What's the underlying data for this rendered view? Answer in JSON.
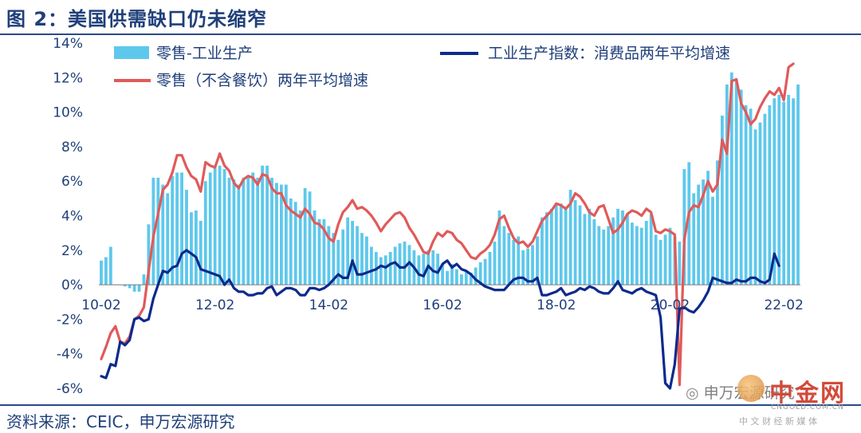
{
  "header": {
    "title": "图 2：美国供需缺口仍未缩窄"
  },
  "footer": {
    "source": "资料来源：CEIC，申万宏源研究"
  },
  "watermark": {
    "wechat": "申万宏源研究",
    "brand": "中金网",
    "domain": "CNGOLD.COM.CN",
    "tagline": "中 文 财 经 新 媒 体"
  },
  "colors": {
    "bars": "#5ec8ec",
    "dark_line": "#0d2a8c",
    "red_line": "#e05a5a",
    "text": "#1f3f7a"
  },
  "chart_data": {
    "type": "bar",
    "title": "",
    "xlabel": "",
    "ylabel": "",
    "ylim": [
      -6,
      14
    ],
    "yticks": [
      "-6%",
      "-4%",
      "-2%",
      "0%",
      "2%",
      "4%",
      "6%",
      "8%",
      "10%",
      "12%",
      "14%"
    ],
    "x_tick_labels": [
      "10-02",
      "12-02",
      "14-02",
      "16-02",
      "18-02",
      "20-02",
      "22-02"
    ],
    "x_tick_index": [
      0,
      24,
      48,
      72,
      96,
      120,
      144
    ],
    "legend": {
      "position": "top",
      "entries": [
        "零售-工业生产",
        "工业生产指数：消费品两年平均增速",
        "零售（不含餐饮）两年平均增速"
      ]
    },
    "series": [
      {
        "name": "零售-工业生产",
        "type": "bar",
        "values": [
          1.4,
          1.6,
          2.2,
          0.0,
          0.0,
          -0.1,
          -0.2,
          -0.4,
          -0.4,
          0.6,
          3.5,
          6.2,
          6.2,
          5.8,
          5.3,
          6.3,
          6.5,
          6.5,
          5.5,
          4.2,
          4.3,
          3.7,
          6.0,
          6.5,
          6.8,
          6.9,
          6.7,
          6.2,
          6.1,
          5.8,
          6.2,
          6.3,
          6.5,
          6.2,
          6.9,
          6.9,
          6.2,
          5.9,
          5.8,
          5.8,
          5.0,
          4.8,
          4.3,
          5.6,
          5.4,
          4.3,
          3.8,
          3.8,
          3.4,
          3.0,
          2.6,
          3.2,
          3.9,
          3.7,
          3.4,
          3.0,
          2.8,
          2.2,
          1.9,
          1.6,
          1.7,
          1.9,
          2.2,
          2.4,
          2.5,
          2.3,
          2.0,
          1.7,
          1.8,
          2.0,
          2.0,
          1.8,
          1.2,
          0.8,
          1.2,
          0.9,
          0.6,
          0.8,
          0.7,
          1.0,
          1.3,
          1.5,
          1.9,
          2.5,
          4.3,
          3.4,
          3.0,
          2.6,
          2.8,
          2.0,
          2.1,
          2.3,
          2.8,
          3.9,
          4.2,
          4.4,
          4.6,
          4.7,
          4.5,
          5.5,
          4.9,
          4.6,
          4.1,
          4.4,
          3.8,
          3.4,
          3.2,
          3.4,
          3.9,
          4.4,
          4.3,
          4.1,
          3.6,
          3.4,
          3.3,
          3.7,
          4.1,
          2.9,
          2.6,
          2.9,
          3.3,
          2.8,
          2.5,
          6.7,
          7.1,
          5.3,
          5.8,
          6.1,
          6.6,
          5.1,
          7.2,
          9.8,
          11.6,
          12.3,
          11.9,
          11.3,
          10.4,
          10.2,
          9.0,
          9.4,
          9.9,
          10.4,
          10.8,
          11.0,
          10.6,
          11.0,
          10.8,
          11.6
        ]
      },
      {
        "name": "工业生产指数：消费品两年平均增速",
        "type": "line",
        "values": [
          -5.3,
          -5.4,
          -4.6,
          -4.7,
          -3.3,
          -3.5,
          -3.2,
          -2.0,
          -1.9,
          -2.1,
          -2.0,
          -0.8,
          0.0,
          0.8,
          0.7,
          1.0,
          1.1,
          1.8,
          2.0,
          1.8,
          1.6,
          0.9,
          0.8,
          0.7,
          0.6,
          0.5,
          0.0,
          0.3,
          -0.2,
          -0.4,
          -0.4,
          -0.6,
          -0.6,
          -0.5,
          -0.5,
          -0.2,
          -0.1,
          -0.6,
          -0.4,
          -0.2,
          -0.2,
          -0.3,
          -0.6,
          -0.6,
          -0.2,
          -0.2,
          -0.3,
          -0.2,
          0.0,
          0.3,
          0.6,
          0.4,
          0.4,
          1.4,
          0.6,
          0.6,
          0.7,
          0.8,
          0.9,
          1.1,
          1.0,
          1.2,
          1.3,
          1.0,
          1.0,
          1.3,
          1.0,
          0.6,
          0.5,
          1.1,
          0.8,
          0.7,
          1.2,
          1.4,
          1.0,
          1.2,
          0.9,
          0.8,
          0.6,
          0.3,
          0.1,
          -0.1,
          -0.2,
          -0.3,
          -0.3,
          -0.3,
          0.0,
          0.3,
          0.4,
          0.4,
          0.2,
          0.2,
          0.4,
          -0.6,
          -0.6,
          -0.5,
          -0.4,
          -0.2,
          -0.6,
          -0.5,
          -0.4,
          -0.2,
          -0.3,
          -0.1,
          -0.2,
          -0.4,
          -0.5,
          -0.5,
          -0.2,
          0.2,
          -0.3,
          -0.4,
          -0.5,
          -0.3,
          -0.2,
          -0.4,
          -0.5,
          -0.6,
          -1.9,
          -5.7,
          -6.0,
          -4.6,
          -1.4,
          -1.3,
          -1.5,
          -1.6,
          -1.3,
          -0.9,
          -0.4,
          0.4,
          0.3,
          0.2,
          0.1,
          0.1,
          0.3,
          0.2,
          0.2,
          0.4,
          0.4,
          0.2,
          0.1,
          0.3,
          1.8,
          1.1
        ]
      },
      {
        "name": "零售（不含餐饮）两年平均增速",
        "type": "line",
        "values": [
          -4.3,
          -3.6,
          -2.8,
          -2.4,
          -3.3,
          -3.4,
          -3.0,
          -2.0,
          -1.8,
          -1.3,
          0.8,
          2.8,
          4.1,
          5.5,
          5.8,
          6.5,
          7.5,
          7.5,
          6.8,
          6.3,
          6.1,
          5.4,
          7.1,
          6.9,
          6.8,
          7.6,
          6.9,
          6.6,
          5.9,
          5.6,
          6.1,
          6.3,
          6.2,
          5.8,
          6.4,
          6.3,
          5.6,
          5.3,
          5.3,
          4.6,
          4.3,
          4.1,
          3.9,
          4.4,
          4.1,
          3.6,
          3.5,
          3.2,
          2.7,
          2.5,
          3.5,
          4.2,
          4.5,
          4.9,
          4.4,
          4.5,
          4.3,
          4.0,
          3.6,
          3.1,
          3.5,
          3.8,
          4.1,
          4.2,
          3.9,
          3.3,
          2.9,
          2.4,
          1.9,
          1.8,
          2.5,
          3.0,
          2.8,
          3.1,
          3.0,
          2.6,
          2.4,
          2.0,
          1.6,
          1.5,
          1.8,
          2.0,
          2.3,
          2.9,
          3.8,
          4.0,
          3.3,
          2.7,
          2.4,
          2.5,
          2.2,
          2.5,
          3.1,
          3.7,
          4.0,
          4.3,
          4.7,
          4.6,
          4.4,
          4.7,
          5.3,
          5.1,
          4.7,
          4.2,
          4.0,
          4.5,
          4.6,
          3.8,
          3.0,
          3.2,
          3.6,
          4.1,
          4.3,
          4.2,
          4.0,
          4.4,
          4.2,
          3.1,
          3.0,
          3.2,
          3.1,
          2.9,
          -5.8,
          2.6,
          4.2,
          4.6,
          4.5,
          5.2,
          6.0,
          5.4,
          5.8,
          8.4,
          7.6,
          11.8,
          11.9,
          10.5,
          10.0,
          9.3,
          9.6,
          10.3,
          10.8,
          11.2,
          11.0,
          11.4,
          10.7,
          12.6,
          12.8
        ]
      }
    ]
  }
}
